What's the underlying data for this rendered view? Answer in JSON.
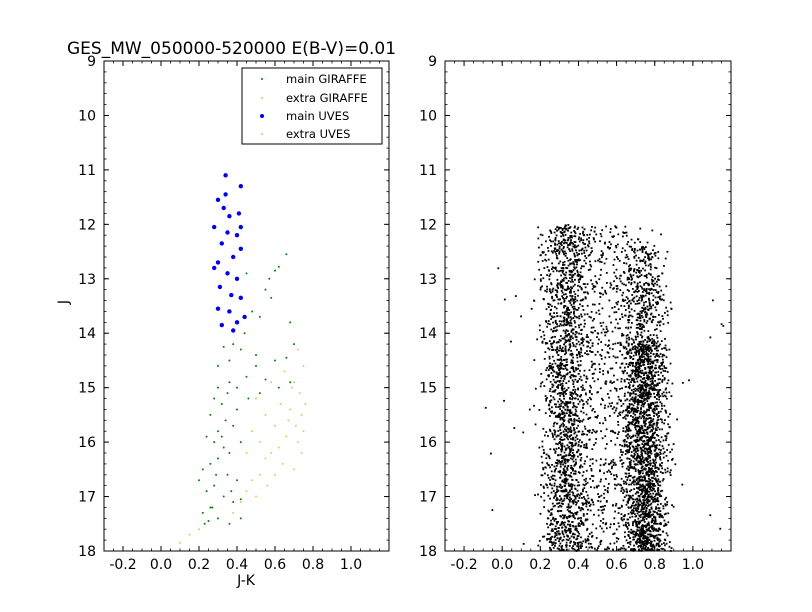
{
  "chart_data": [
    {
      "type": "scatter",
      "title": "GES_MW_050000-520000 E(B-V)=0.01",
      "xlabel": "J-K",
      "ylabel": "J",
      "xlim": [
        -0.3,
        1.2
      ],
      "ylim": [
        18,
        9
      ],
      "y_inverted": true,
      "x_ticks": [
        "-0.2",
        "0.0",
        "0.2",
        "0.4",
        "0.6",
        "0.8",
        "1.0"
      ],
      "x_tick_values": [
        -0.2,
        0.0,
        0.2,
        0.4,
        0.6,
        0.8,
        1.0
      ],
      "y_ticks": [
        "9",
        "10",
        "11",
        "12",
        "13",
        "14",
        "15",
        "16",
        "17",
        "18"
      ],
      "y_tick_values": [
        9,
        10,
        11,
        12,
        13,
        14,
        15,
        16,
        17,
        18
      ],
      "legend_position": "top-right",
      "series": [
        {
          "name": "main GIRAFFE",
          "color": "#007f00",
          "marker": "small-dot",
          "points": [
            [
              0.66,
              12.55
            ],
            [
              0.62,
              12.78
            ],
            [
              0.6,
              12.85
            ],
            [
              0.57,
              13.0
            ],
            [
              0.45,
              12.9
            ],
            [
              0.55,
              13.2
            ],
            [
              0.58,
              13.35
            ],
            [
              0.48,
              13.6
            ],
            [
              0.68,
              13.8
            ],
            [
              0.52,
              13.7
            ],
            [
              0.44,
              14.0
            ],
            [
              0.7,
              14.2
            ],
            [
              0.6,
              14.5
            ],
            [
              0.66,
              14.45
            ],
            [
              0.5,
              14.6
            ],
            [
              0.38,
              14.2
            ],
            [
              0.42,
              14.3
            ],
            [
              0.33,
              14.25
            ],
            [
              0.36,
              14.5
            ],
            [
              0.3,
              14.6
            ],
            [
              0.45,
              14.8
            ],
            [
              0.55,
              14.85
            ],
            [
              0.62,
              15.0
            ],
            [
              0.68,
              14.9
            ],
            [
              0.4,
              15.0
            ],
            [
              0.35,
              15.1
            ],
            [
              0.32,
              15.3
            ],
            [
              0.28,
              15.2
            ],
            [
              0.26,
              15.5
            ],
            [
              0.34,
              15.6
            ],
            [
              0.38,
              15.7
            ],
            [
              0.3,
              15.8
            ],
            [
              0.24,
              15.9
            ],
            [
              0.28,
              16.0
            ],
            [
              0.33,
              16.1
            ],
            [
              0.36,
              16.2
            ],
            [
              0.3,
              16.3
            ],
            [
              0.26,
              16.4
            ],
            [
              0.22,
              16.5
            ],
            [
              0.35,
              16.6
            ],
            [
              0.4,
              16.7
            ],
            [
              0.28,
              16.8
            ],
            [
              0.24,
              16.9
            ],
            [
              0.2,
              16.7
            ],
            [
              0.33,
              17.0
            ],
            [
              0.38,
              17.1
            ],
            [
              0.27,
              17.2
            ],
            [
              0.22,
              17.3
            ],
            [
              0.3,
              17.4
            ],
            [
              0.36,
              17.5
            ],
            [
              0.42,
              17.4
            ],
            [
              0.25,
              17.45
            ],
            [
              0.32,
              15.9
            ],
            [
              0.4,
              15.4
            ],
            [
              0.46,
              15.2
            ],
            [
              0.52,
              15.1
            ],
            [
              0.5,
              14.4
            ],
            [
              0.36,
              14.9
            ],
            [
              0.3,
              15.0
            ],
            [
              0.42,
              16.0
            ],
            [
              0.29,
              16.6
            ],
            [
              0.37,
              16.9
            ],
            [
              0.42,
              17.05
            ],
            [
              0.26,
              17.2
            ],
            [
              0.23,
              17.5
            ]
          ]
        },
        {
          "name": "extra GIRAFFE",
          "color": "#f5c05a",
          "marker": "small-dot",
          "points": [
            [
              0.72,
              14.3
            ],
            [
              0.75,
              14.6
            ],
            [
              0.7,
              14.9
            ],
            [
              0.73,
              15.1
            ],
            [
              0.76,
              15.3
            ],
            [
              0.68,
              15.4
            ],
            [
              0.74,
              15.5
            ],
            [
              0.71,
              15.7
            ],
            [
              0.75,
              15.8
            ],
            [
              0.66,
              15.9
            ],
            [
              0.72,
              16.0
            ],
            [
              0.62,
              16.1
            ],
            [
              0.58,
              16.2
            ],
            [
              0.55,
              16.3
            ],
            [
              0.64,
              16.4
            ],
            [
              0.7,
              16.5
            ],
            [
              0.52,
              16.6
            ],
            [
              0.48,
              16.7
            ],
            [
              0.45,
              16.9
            ],
            [
              0.42,
              17.1
            ],
            [
              0.38,
              17.3
            ],
            [
              0.5,
              15.2
            ],
            [
              0.55,
              15.5
            ],
            [
              0.6,
              15.7
            ],
            [
              0.48,
              15.8
            ],
            [
              0.52,
              16.0
            ],
            [
              0.45,
              16.2
            ],
            [
              0.74,
              16.2
            ],
            [
              0.67,
              15.6
            ],
            [
              0.63,
              15.3
            ],
            [
              0.58,
              14.9
            ],
            [
              0.65,
              14.7
            ],
            [
              0.69,
              15.0
            ],
            [
              0.6,
              16.6
            ],
            [
              0.56,
              16.8
            ],
            [
              0.5,
              17.0
            ],
            [
              0.15,
              17.7
            ],
            [
              0.1,
              17.85
            ],
            [
              0.2,
              17.6
            ]
          ]
        },
        {
          "name": "main UVES",
          "color": "#0000ee",
          "marker": "dot",
          "points": [
            [
              0.34,
              11.1
            ],
            [
              0.42,
              11.3
            ],
            [
              0.3,
              11.55
            ],
            [
              0.33,
              11.7
            ],
            [
              0.36,
              11.85
            ],
            [
              0.41,
              11.8
            ],
            [
              0.28,
              12.05
            ],
            [
              0.35,
              12.15
            ],
            [
              0.4,
              12.2
            ],
            [
              0.32,
              12.35
            ],
            [
              0.42,
              12.45
            ],
            [
              0.38,
              12.6
            ],
            [
              0.3,
              12.7
            ],
            [
              0.35,
              12.9
            ],
            [
              0.4,
              13.0
            ],
            [
              0.31,
              13.15
            ],
            [
              0.37,
              13.3
            ],
            [
              0.42,
              13.35
            ],
            [
              0.3,
              13.55
            ],
            [
              0.36,
              13.6
            ],
            [
              0.44,
              13.7
            ],
            [
              0.32,
              13.85
            ],
            [
              0.38,
              13.95
            ],
            [
              0.4,
              13.8
            ],
            [
              0.34,
              11.45
            ],
            [
              0.28,
              12.8
            ],
            [
              0.42,
              12.05
            ]
          ]
        },
        {
          "name": "extra UVES",
          "color": "#f5c05a",
          "marker": "small-dot",
          "points": []
        }
      ]
    },
    {
      "type": "scatter",
      "xlim": [
        -0.3,
        1.2
      ],
      "ylim": [
        18,
        9
      ],
      "y_inverted": true,
      "x_ticks": [
        "-0.2",
        "0.0",
        "0.2",
        "0.4",
        "0.6",
        "0.8",
        "1.0"
      ],
      "x_tick_values": [
        -0.2,
        0.0,
        0.2,
        0.4,
        0.6,
        0.8,
        1.0
      ],
      "y_ticks": [
        "9",
        "10",
        "11",
        "12",
        "13",
        "14",
        "15",
        "16",
        "17",
        "18"
      ],
      "y_tick_values": [
        9,
        10,
        11,
        12,
        13,
        14,
        15,
        16,
        17,
        18
      ],
      "series": [
        {
          "color": "#000000",
          "marker": "small-dot",
          "density_regions": [
            {
              "x_center": 0.33,
              "x_spread": 0.06,
              "y_range": [
                12.0,
                18.0
              ],
              "count": 1700
            },
            {
              "x_center": 0.75,
              "x_spread": 0.055,
              "y_range": [
                14.2,
                18.0
              ],
              "count": 1900
            },
            {
              "x_center": 0.75,
              "x_spread": 0.05,
              "y_range": [
                12.4,
                14.2
              ],
              "count": 350
            },
            {
              "x_center": 0.55,
              "x_spread": 0.12,
              "y_range": [
                12.0,
                18.0
              ],
              "count": 900
            },
            {
              "x_center": 0.55,
              "x_spread": 0.35,
              "y_range": [
                12.6,
                18.0
              ],
              "count": 110
            }
          ]
        }
      ]
    }
  ]
}
